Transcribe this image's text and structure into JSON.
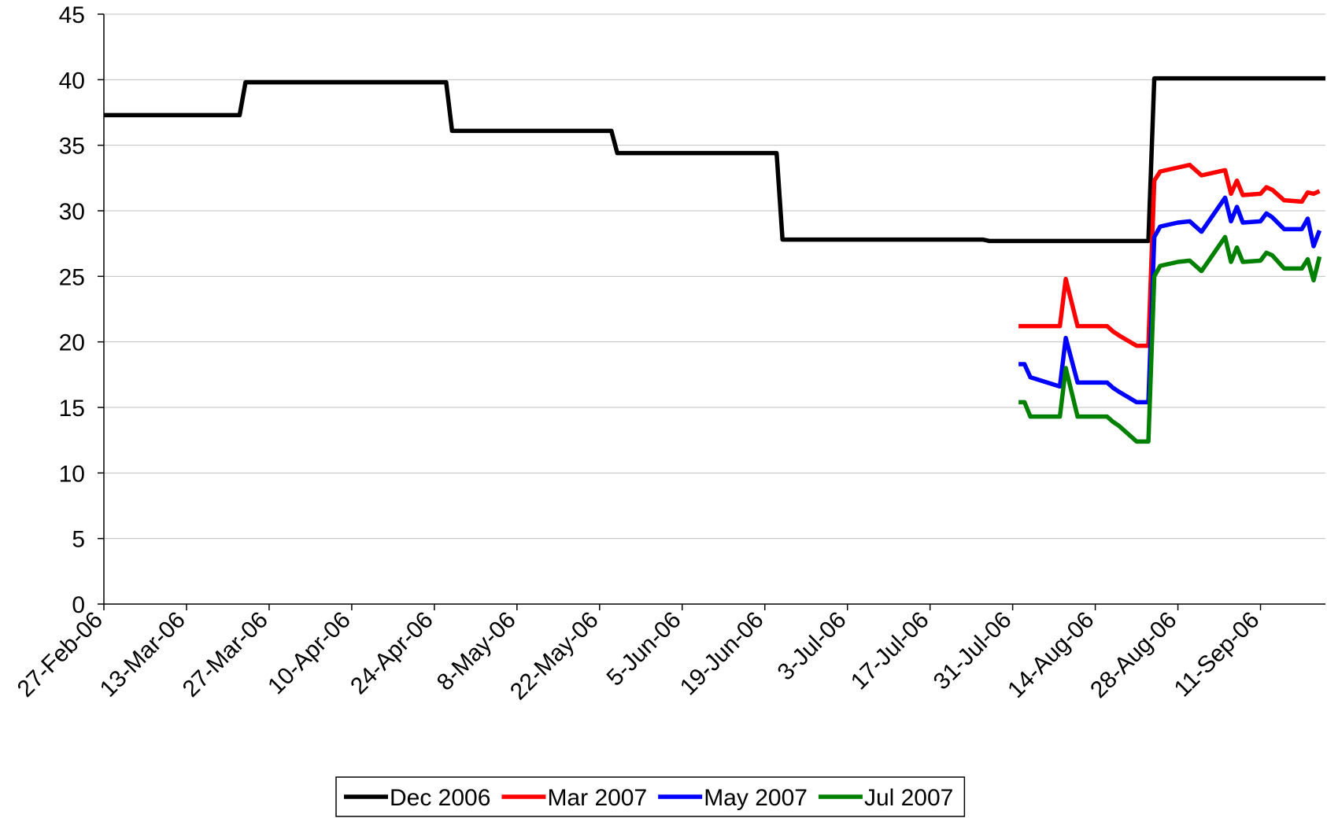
{
  "chart_data": {
    "type": "line",
    "xlim": [
      "2006-02-27",
      "2006-09-22"
    ],
    "xticks": [
      {
        "value": "2006-02-27",
        "label": "27-Feb-06"
      },
      {
        "value": "2006-03-13",
        "label": "13-Mar-06"
      },
      {
        "value": "2006-03-27",
        "label": "27-Mar-06"
      },
      {
        "value": "2006-04-10",
        "label": "10-Apr-06"
      },
      {
        "value": "2006-04-24",
        "label": "24-Apr-06"
      },
      {
        "value": "2006-05-08",
        "label": "8-May-06"
      },
      {
        "value": "2006-05-22",
        "label": "22-May-06"
      },
      {
        "value": "2006-06-05",
        "label": "5-Jun-06"
      },
      {
        "value": "2006-06-19",
        "label": "19-Jun-06"
      },
      {
        "value": "2006-07-03",
        "label": "3-Jul-06"
      },
      {
        "value": "2006-07-17",
        "label": "17-Jul-06"
      },
      {
        "value": "2006-07-31",
        "label": "31-Jul-06"
      },
      {
        "value": "2006-08-14",
        "label": "14-Aug-06"
      },
      {
        "value": "2006-08-28",
        "label": "28-Aug-06"
      },
      {
        "value": "2006-09-11",
        "label": "11-Sep-06"
      }
    ],
    "ylim": [
      0,
      45
    ],
    "yticks": [
      0,
      5,
      10,
      15,
      20,
      25,
      30,
      35,
      40,
      45
    ],
    "grid": true,
    "legend": "bottom",
    "series": [
      {
        "name": "Dec 2006",
        "color": "#000000",
        "x": [
          "2006-02-27",
          "2006-03-22",
          "2006-03-23",
          "2006-04-26",
          "2006-04-27",
          "2006-05-24",
          "2006-05-25",
          "2006-06-21",
          "2006-06-22",
          "2006-07-26",
          "2006-07-27",
          "2006-08-23",
          "2006-08-24",
          "2006-09-22"
        ],
        "values": [
          37.3,
          37.3,
          39.8,
          39.8,
          36.1,
          36.1,
          34.4,
          34.4,
          27.8,
          27.8,
          27.7,
          27.7,
          40.1,
          40.1
        ]
      },
      {
        "name": "Mar 2007",
        "color": "#ff0000",
        "x": [
          "2006-08-01",
          "2006-08-02",
          "2006-08-03",
          "2006-08-08",
          "2006-08-09",
          "2006-08-11",
          "2006-08-16",
          "2006-08-17",
          "2006-08-18",
          "2006-08-21",
          "2006-08-23",
          "2006-08-24",
          "2006-08-25",
          "2006-08-28",
          "2006-08-30",
          "2006-09-01",
          "2006-09-05",
          "2006-09-06",
          "2006-09-07",
          "2006-09-08",
          "2006-09-11",
          "2006-09-12",
          "2006-09-13",
          "2006-09-15",
          "2006-09-18",
          "2006-09-19",
          "2006-09-20",
          "2006-09-21"
        ],
        "values": [
          21.2,
          21.2,
          21.2,
          21.2,
          24.8,
          21.2,
          21.2,
          20.8,
          20.5,
          19.7,
          19.7,
          32.3,
          33.0,
          33.3,
          33.5,
          32.7,
          33.1,
          31.3,
          32.3,
          31.2,
          31.3,
          31.8,
          31.6,
          30.8,
          30.7,
          31.4,
          31.3,
          31.5
        ]
      },
      {
        "name": "May 2007",
        "color": "#0000ff",
        "x": [
          "2006-08-01",
          "2006-08-02",
          "2006-08-03",
          "2006-08-08",
          "2006-08-09",
          "2006-08-11",
          "2006-08-16",
          "2006-08-17",
          "2006-08-18",
          "2006-08-21",
          "2006-08-23",
          "2006-08-24",
          "2006-08-25",
          "2006-08-28",
          "2006-08-30",
          "2006-09-01",
          "2006-09-05",
          "2006-09-06",
          "2006-09-07",
          "2006-09-08",
          "2006-09-11",
          "2006-09-12",
          "2006-09-13",
          "2006-09-15",
          "2006-09-18",
          "2006-09-19",
          "2006-09-20",
          "2006-09-21"
        ],
        "values": [
          18.3,
          18.3,
          17.3,
          16.6,
          20.3,
          16.9,
          16.9,
          16.5,
          16.2,
          15.4,
          15.4,
          28.0,
          28.8,
          29.1,
          29.2,
          28.4,
          31.0,
          29.2,
          30.3,
          29.1,
          29.2,
          29.8,
          29.5,
          28.6,
          28.6,
          29.4,
          27.3,
          28.5
        ]
      },
      {
        "name": "Jul 2007",
        "color": "#008000",
        "x": [
          "2006-08-01",
          "2006-08-02",
          "2006-08-03",
          "2006-08-08",
          "2006-08-09",
          "2006-08-11",
          "2006-08-16",
          "2006-08-17",
          "2006-08-18",
          "2006-08-21",
          "2006-08-23",
          "2006-08-24",
          "2006-08-25",
          "2006-08-28",
          "2006-08-30",
          "2006-09-01",
          "2006-09-05",
          "2006-09-06",
          "2006-09-07",
          "2006-09-08",
          "2006-09-11",
          "2006-09-12",
          "2006-09-13",
          "2006-09-15",
          "2006-09-18",
          "2006-09-19",
          "2006-09-20",
          "2006-09-21"
        ],
        "values": [
          15.4,
          15.4,
          14.3,
          14.3,
          18.0,
          14.3,
          14.3,
          13.9,
          13.6,
          12.4,
          12.4,
          25.0,
          25.8,
          26.1,
          26.2,
          25.4,
          28.0,
          26.1,
          27.2,
          26.1,
          26.2,
          26.8,
          26.6,
          25.6,
          25.6,
          26.3,
          24.7,
          26.5
        ]
      }
    ]
  }
}
